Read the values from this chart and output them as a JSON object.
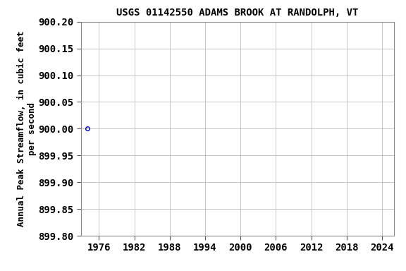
{
  "title": "USGS 01142550 ADAMS BROOK AT RANDOLPH, VT",
  "ylabel_line1": "Annual Peak Streamflow, in cubic feet",
  "ylabel_line2": "per second",
  "data_x": [
    1974
  ],
  "data_y": [
    900.0
  ],
  "marker_color": "#0000cc",
  "marker_size": 4,
  "xlim": [
    1973,
    2026
  ],
  "ylim": [
    899.8,
    900.2
  ],
  "xticks": [
    1976,
    1982,
    1988,
    1994,
    2000,
    2006,
    2012,
    2018,
    2024
  ],
  "yticks": [
    899.8,
    899.85,
    899.9,
    899.95,
    900.0,
    900.05,
    900.1,
    900.15,
    900.2
  ],
  "grid_color": "#bbbbbb",
  "bg_color": "#ffffff",
  "title_fontsize": 10,
  "label_fontsize": 9,
  "tick_fontsize": 10
}
